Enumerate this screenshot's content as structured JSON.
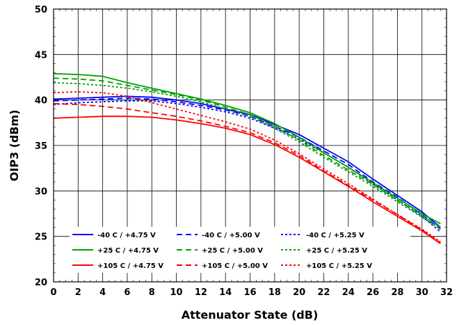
{
  "chart_data": {
    "type": "line",
    "xlabel": "Attenuator State (dB)",
    "ylabel": "OIP3 (dBm)",
    "xlim": [
      0,
      32
    ],
    "ylim": [
      20,
      50
    ],
    "xticks": [
      0,
      2,
      4,
      6,
      8,
      10,
      12,
      14,
      16,
      18,
      20,
      22,
      24,
      26,
      28,
      30,
      32
    ],
    "yticks": [
      20,
      25,
      30,
      35,
      40,
      45,
      50
    ],
    "grid": true,
    "legend_position": "bottom-left inside",
    "legend_columns": 3,
    "x": [
      0,
      2,
      4,
      6,
      8,
      10,
      12,
      14,
      16,
      18,
      20,
      22,
      24,
      26,
      28,
      30,
      31.5
    ],
    "series": [
      {
        "name": "-40 C / +4.75 V",
        "color": "#0000ff",
        "dash": "solid",
        "values": [
          40.1,
          40.2,
          40.3,
          40.4,
          40.3,
          40.0,
          39.6,
          39.0,
          38.4,
          37.3,
          36.2,
          34.7,
          33.2,
          31.3,
          29.5,
          27.7,
          26.0
        ]
      },
      {
        "name": "-40 C / +5.00 V",
        "color": "#0000ff",
        "dash": "dashed",
        "values": [
          39.9,
          40.0,
          40.1,
          40.2,
          40.1,
          39.8,
          39.4,
          38.9,
          38.2,
          37.1,
          35.9,
          34.4,
          32.9,
          31.0,
          29.3,
          27.4,
          25.8
        ]
      },
      {
        "name": "-40 C / +5.25 V",
        "color": "#0000ff",
        "dash": "dotted",
        "values": [
          39.5,
          39.7,
          39.8,
          39.9,
          39.9,
          39.6,
          39.2,
          38.7,
          38.0,
          36.9,
          35.7,
          34.2,
          32.6,
          30.8,
          29.0,
          27.2,
          25.5
        ]
      },
      {
        "name": "+25 C / +4.75 V",
        "color": "#00a000",
        "dash": "solid",
        "values": [
          42.9,
          42.8,
          42.6,
          41.9,
          41.3,
          40.7,
          40.1,
          39.4,
          38.6,
          37.4,
          35.9,
          34.2,
          32.6,
          30.9,
          29.2,
          27.5,
          26.4
        ]
      },
      {
        "name": "+25 C / +5.00 V",
        "color": "#00a000",
        "dash": "dashed",
        "values": [
          42.4,
          42.3,
          42.1,
          41.6,
          41.1,
          40.6,
          40.0,
          39.2,
          38.4,
          37.1,
          35.6,
          33.9,
          32.3,
          30.7,
          29.0,
          27.3,
          26.0
        ]
      },
      {
        "name": "+25 C / +5.25 V",
        "color": "#00a000",
        "dash": "dotted",
        "values": [
          41.9,
          41.8,
          41.6,
          41.3,
          40.9,
          40.4,
          39.8,
          39.0,
          38.2,
          36.9,
          35.4,
          33.7,
          32.1,
          30.5,
          28.8,
          27.1,
          25.8
        ]
      },
      {
        "name": "+105 C / +4.75 V",
        "color": "#ff0000",
        "dash": "solid",
        "values": [
          38.0,
          38.1,
          38.2,
          38.2,
          38.1,
          37.8,
          37.4,
          36.9,
          36.2,
          35.1,
          33.7,
          32.1,
          30.5,
          28.8,
          27.2,
          25.6,
          24.2
        ]
      },
      {
        "name": "+105 C / +5.00 V",
        "color": "#ff0000",
        "dash": "dashed",
        "values": [
          39.6,
          39.5,
          39.3,
          39.0,
          38.6,
          38.2,
          37.7,
          37.1,
          36.4,
          35.3,
          33.9,
          32.2,
          30.6,
          29.0,
          27.4,
          25.7,
          24.3
        ]
      },
      {
        "name": "+105 C / +5.25 V",
        "color": "#ff0000",
        "dash": "dotted",
        "values": [
          40.8,
          40.9,
          40.8,
          40.4,
          39.7,
          39.0,
          38.3,
          37.6,
          36.8,
          35.6,
          34.1,
          32.4,
          30.8,
          29.1,
          27.4,
          25.8,
          24.4
        ]
      }
    ]
  }
}
